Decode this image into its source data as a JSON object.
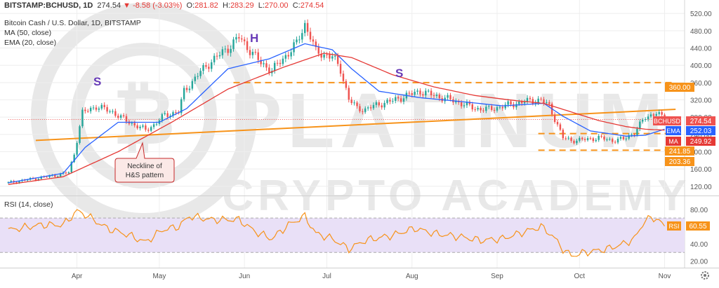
{
  "header": {
    "symbol": "BITSTAMP:BCHUSD, 1D",
    "last": "274.54",
    "change": "-8.58 (-3.03%)",
    "o_label": "O:",
    "o": "281.82",
    "h_label": "H:",
    "h": "283.29",
    "l_label": "L:",
    "l": "270.00",
    "c_label": "C:",
    "c": "274.54"
  },
  "legend": {
    "title": "Bitcoin Cash / U.S. Dollar, 1D, BITSTAMP",
    "ma": "MA (50, close)",
    "ema": "EMA (20, close)",
    "rsi": "RSI (14, close)"
  },
  "pattern_labels": {
    "left_shoulder": "S",
    "head": "H",
    "right_shoulder": "S"
  },
  "callout": {
    "line1": "Neckline of",
    "line2": "H&S pattern"
  },
  "watermark": {
    "line1": "PLATINUM",
    "line2": "CRYPTO ACADEMY"
  },
  "badges": {
    "price": {
      "label": "BCHUSD",
      "value": "274.54"
    },
    "ema": {
      "label": "EMA",
      "value": "252.03"
    },
    "ma": {
      "label": "MA",
      "value": "249.92"
    },
    "level_360": "360.00",
    "level_241": "241.85",
    "level_203": "203.36",
    "rsi": {
      "label": "RSI",
      "value": "60.55"
    }
  },
  "colors": {
    "up": "#26a69a",
    "down": "#ef5350",
    "ma": "#e53935",
    "ema": "#2962ff",
    "neckline": "#f7931a",
    "level": "#f7931a",
    "rsi": "#f7931a",
    "rsi_band": "#e9e0f7",
    "pattern_text": "#673ab7",
    "grid": "#eeeeee"
  },
  "chart_data": [
    {
      "type": "candlestick",
      "title": "Bitcoin Cash / U.S. Dollar, 1D, BITSTAMP",
      "y_ticks": [
        120,
        160,
        200,
        240,
        280,
        320,
        360,
        400,
        440,
        480,
        520
      ],
      "ylim": [
        105,
        535
      ],
      "x_ticks": [
        "Apr",
        "May",
        "Jun",
        "Jul",
        "Aug",
        "Sep",
        "Oct",
        "Nov"
      ],
      "x_tick_index": [
        25,
        55,
        86,
        116,
        147,
        178,
        208,
        239
      ],
      "x_range": [
        -2,
        245
      ],
      "close_keyframes": [
        [
          0,
          128
        ],
        [
          10,
          138
        ],
        [
          18,
          146
        ],
        [
          22,
          152
        ],
        [
          24,
          195
        ],
        [
          27,
          290
        ],
        [
          32,
          305
        ],
        [
          38,
          292
        ],
        [
          42,
          275
        ],
        [
          46,
          262
        ],
        [
          50,
          250
        ],
        [
          53,
          262
        ],
        [
          57,
          285
        ],
        [
          62,
          292
        ],
        [
          64,
          340
        ],
        [
          70,
          385
        ],
        [
          74,
          410
        ],
        [
          80,
          440
        ],
        [
          84,
          465
        ],
        [
          88,
          435
        ],
        [
          92,
          405
        ],
        [
          96,
          388
        ],
        [
          100,
          415
        ],
        [
          105,
          450
        ],
        [
          108,
          495
        ],
        [
          110,
          468
        ],
        [
          112,
          430
        ],
        [
          118,
          420
        ],
        [
          121,
          390
        ],
        [
          124,
          322
        ],
        [
          127,
          300
        ],
        [
          130,
          298
        ],
        [
          135,
          310
        ],
        [
          140,
          318
        ],
        [
          145,
          330
        ],
        [
          150,
          340
        ],
        [
          155,
          330
        ],
        [
          160,
          322
        ],
        [
          165,
          312
        ],
        [
          170,
          300
        ],
        [
          175,
          298
        ],
        [
          180,
          305
        ],
        [
          185,
          312
        ],
        [
          190,
          318
        ],
        [
          194,
          320
        ],
        [
          197,
          305
        ],
        [
          200,
          262
        ],
        [
          202,
          232
        ],
        [
          205,
          226
        ],
        [
          210,
          228
        ],
        [
          215,
          232
        ],
        [
          220,
          226
        ],
        [
          224,
          229
        ],
        [
          228,
          244
        ],
        [
          232,
          280
        ],
        [
          236,
          290
        ],
        [
          239,
          274.54
        ]
      ],
      "ma50": {
        "name": "MA (50, close)",
        "points": [
          [
            0,
            124
          ],
          [
            20,
            142
          ],
          [
            40,
            200
          ],
          [
            60,
            270
          ],
          [
            80,
            345
          ],
          [
            100,
            395
          ],
          [
            115,
            428
          ],
          [
            125,
            418
          ],
          [
            140,
            378
          ],
          [
            155,
            350
          ],
          [
            170,
            330
          ],
          [
            185,
            318
          ],
          [
            195,
            312
          ],
          [
            205,
            292
          ],
          [
            215,
            272
          ],
          [
            225,
            258
          ],
          [
            232,
            252
          ],
          [
            239,
            249.92
          ]
        ]
      },
      "ema20": {
        "name": "EMA (20, close)",
        "points": [
          [
            0,
            128
          ],
          [
            20,
            150
          ],
          [
            28,
            210
          ],
          [
            40,
            268
          ],
          [
            55,
            268
          ],
          [
            65,
            300
          ],
          [
            80,
            392
          ],
          [
            95,
            415
          ],
          [
            108,
            450
          ],
          [
            118,
            436
          ],
          [
            125,
            392
          ],
          [
            135,
            340
          ],
          [
            150,
            325
          ],
          [
            165,
            316
          ],
          [
            180,
            306
          ],
          [
            195,
            312
          ],
          [
            202,
            282
          ],
          [
            212,
            248
          ],
          [
            225,
            236
          ],
          [
            232,
            238
          ],
          [
            239,
            252.03
          ]
        ]
      },
      "neckline": {
        "points": [
          [
            10,
            226
          ],
          [
            243,
            298
          ]
        ]
      },
      "levels": [
        {
          "value": 360,
          "from": 82,
          "to": 243,
          "label": "360.00"
        },
        {
          "value": 241.85,
          "from": 193,
          "to": 243,
          "label": "241.85"
        },
        {
          "value": 203.36,
          "from": 193,
          "to": 243,
          "label": "203.36"
        },
        {
          "value": 274.54,
          "from": 0,
          "to": 243,
          "label": "274.54"
        }
      ],
      "last_close": 274.54,
      "ema_last": 252.03,
      "ma_last": 249.92
    },
    {
      "type": "line",
      "title": "RSI (14, close)",
      "y_ticks": [
        20,
        40,
        60,
        80
      ],
      "ylim": [
        14,
        92
      ],
      "band": [
        30,
        70
      ],
      "last": 60.55,
      "keyframes": [
        [
          0,
          56
        ],
        [
          12,
          62
        ],
        [
          20,
          62
        ],
        [
          25,
          78
        ],
        [
          28,
          74
        ],
        [
          36,
          58
        ],
        [
          44,
          50
        ],
        [
          50,
          42
        ],
        [
          56,
          56
        ],
        [
          62,
          60
        ],
        [
          66,
          72
        ],
        [
          74,
          68
        ],
        [
          84,
          68
        ],
        [
          90,
          54
        ],
        [
          96,
          46
        ],
        [
          102,
          62
        ],
        [
          108,
          72
        ],
        [
          112,
          52
        ],
        [
          118,
          46
        ],
        [
          124,
          34
        ],
        [
          130,
          44
        ],
        [
          140,
          50
        ],
        [
          148,
          58
        ],
        [
          155,
          52
        ],
        [
          165,
          48
        ],
        [
          172,
          44
        ],
        [
          180,
          46
        ],
        [
          188,
          54
        ],
        [
          194,
          60
        ],
        [
          198,
          50
        ],
        [
          202,
          34
        ],
        [
          205,
          26
        ],
        [
          210,
          30
        ],
        [
          218,
          34
        ],
        [
          224,
          40
        ],
        [
          228,
          46
        ],
        [
          232,
          68
        ],
        [
          236,
          70
        ],
        [
          239,
          60.55
        ]
      ]
    }
  ]
}
